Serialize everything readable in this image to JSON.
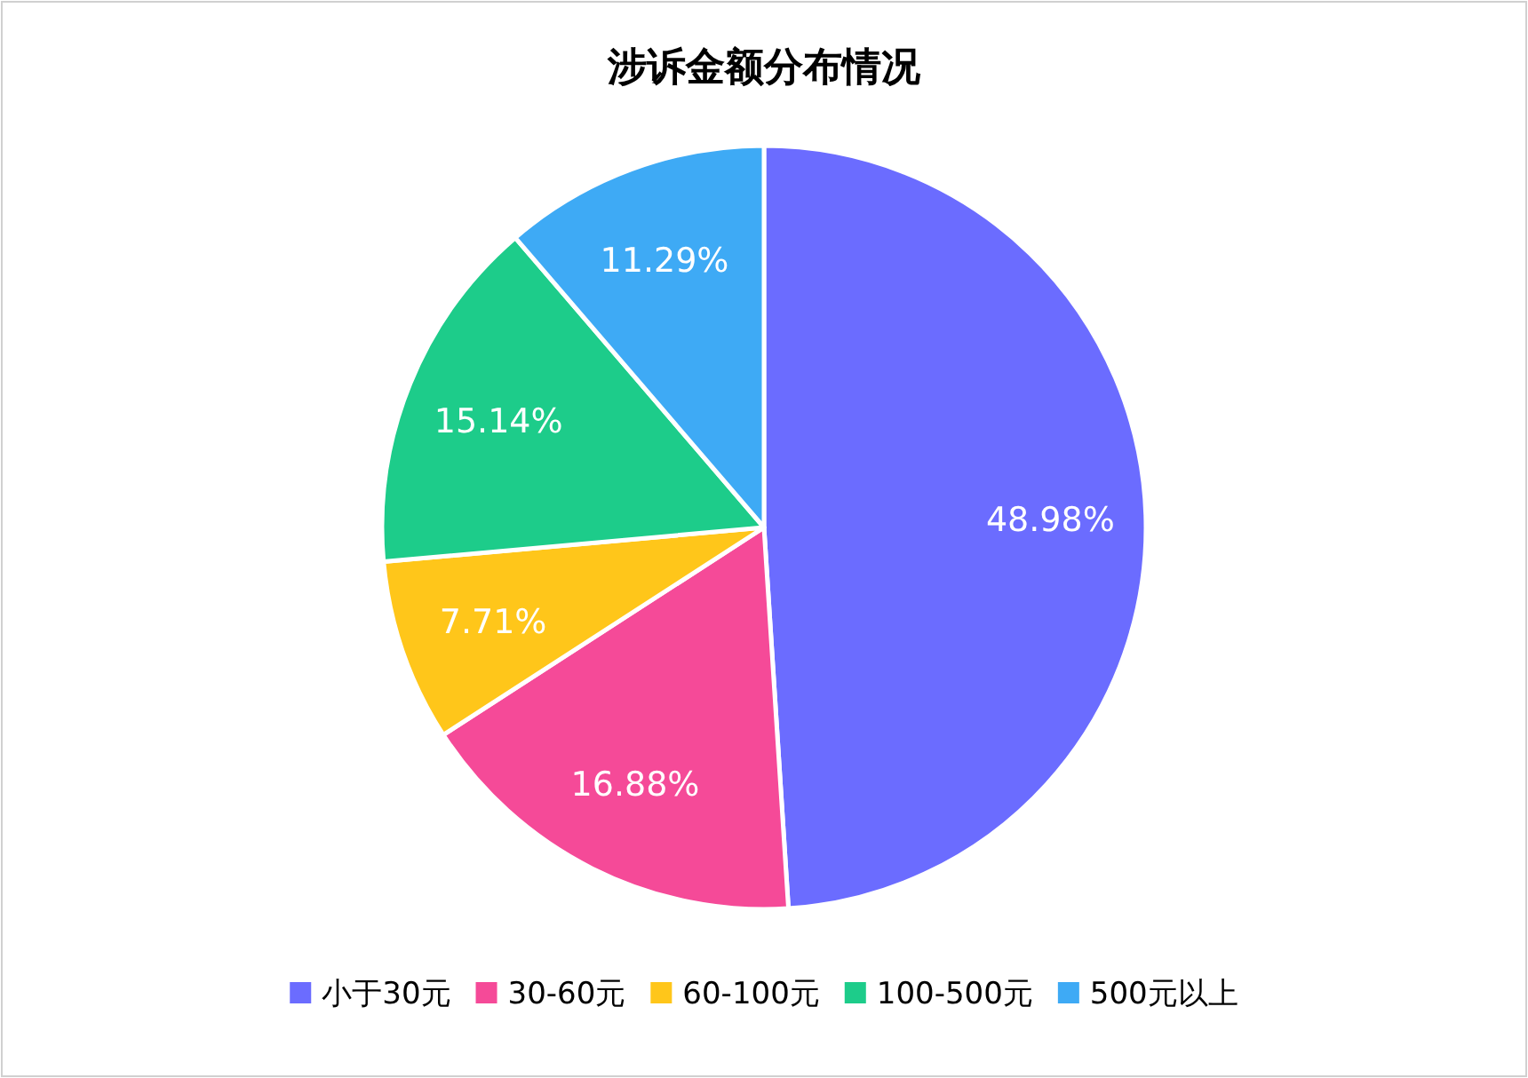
{
  "chart_data": {
    "type": "pie",
    "title": "涉诉金额分布情况",
    "categories": [
      "小于30元",
      "30-60元",
      "60-100元",
      "100-500元",
      "500元以上"
    ],
    "values": [
      48.98,
      16.88,
      7.71,
      15.14,
      11.29
    ],
    "value_labels": [
      "48.98%",
      "16.88%",
      "7.71%",
      "15.14%",
      "11.29%"
    ],
    "colors": [
      "#6b6cff",
      "#f54a98",
      "#ffc61a",
      "#1dcc8a",
      "#3eaaf5"
    ],
    "legend": "bottom"
  }
}
